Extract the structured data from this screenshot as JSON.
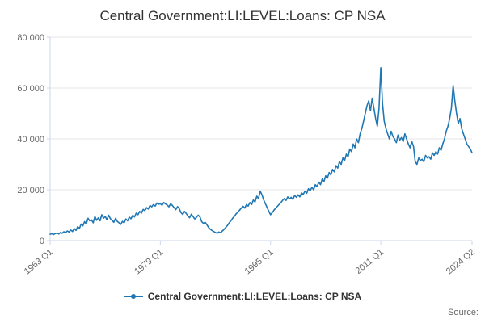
{
  "title": "Central Government:LI:LEVEL:Loans: CP NSA",
  "source_label": "Source:",
  "legend": {
    "label": "Central Government:LI:LEVEL:Loans: CP NSA",
    "color": "#1f77b4"
  },
  "colors": {
    "grid": "#e6e6e6",
    "axis": "#ccd6eb",
    "tick_text": "#666666",
    "title_text": "#333333"
  },
  "chart_data": {
    "type": "line",
    "title": "Central Government:LI:LEVEL:Loans: CP NSA",
    "xlabel": "",
    "ylabel": "",
    "ylim": [
      0,
      80000
    ],
    "grid": true,
    "legend_position": "bottom",
    "x_axis": {
      "start": "1963 Q1",
      "end": "2024 Q2",
      "frequency": "quarterly"
    },
    "x_ticks": [
      {
        "label": "1963 Q1",
        "index": 0
      },
      {
        "label": "1979 Q1",
        "index": 64
      },
      {
        "label": "1995 Q1",
        "index": 128
      },
      {
        "label": "2011 Q1",
        "index": 192
      },
      {
        "label": "2024 Q2",
        "index": 245
      }
    ],
    "y_ticks": [
      {
        "value": 0,
        "label": "0"
      },
      {
        "value": 20000,
        "label": "20 000"
      },
      {
        "value": 40000,
        "label": "40 000"
      },
      {
        "value": 60000,
        "label": "60 000"
      },
      {
        "value": 80000,
        "label": "80 000"
      }
    ],
    "series": [
      {
        "name": "Central Government:LI:LEVEL:Loans: CP NSA",
        "color": "#1f77b4",
        "values": [
          2500,
          2700,
          2400,
          2800,
          3000,
          2600,
          3200,
          2900,
          3500,
          3100,
          3800,
          3400,
          4200,
          3600,
          4800,
          4000,
          5500,
          4800,
          6500,
          5800,
          7500,
          6500,
          8800,
          7800,
          8200,
          7000,
          9500,
          8000,
          9000,
          7800,
          10200,
          8800,
          9500,
          8200,
          10000,
          8600,
          8000,
          7200,
          8800,
          7600,
          7000,
          6400,
          7600,
          7000,
          8500,
          7800,
          9200,
          8600,
          10000,
          9300,
          10800,
          10200,
          11500,
          10800,
          12300,
          11800,
          13000,
          12400,
          13800,
          13300,
          14200,
          13600,
          14800,
          14300,
          14500,
          13900,
          15000,
          14400,
          14000,
          13300,
          14500,
          13800,
          13000,
          12200,
          13400,
          12500,
          11000,
          10300,
          11500,
          10700,
          9800,
          9000,
          10400,
          9500,
          8500,
          9200,
          10000,
          9300,
          7500,
          6800,
          7200,
          6300,
          5200,
          4500,
          4000,
          3600,
          3200,
          2900,
          3400,
          3100,
          3800,
          4400,
          5200,
          6000,
          7000,
          7800,
          8800,
          9600,
          10500,
          11200,
          12000,
          12800,
          13500,
          12800,
          14200,
          13600,
          15000,
          14200,
          16000,
          15200,
          17500,
          16500,
          19500,
          18000,
          16000,
          14500,
          13000,
          11500,
          10200,
          11000,
          12000,
          12800,
          13500,
          14300,
          15000,
          15800,
          16500,
          15800,
          17200,
          16400,
          17000,
          16200,
          17800,
          17000,
          18000,
          17200,
          18800,
          18200,
          19500,
          18600,
          20400,
          19600,
          21000,
          20000,
          22000,
          21200,
          23000,
          22000,
          24200,
          23200,
          25500,
          24500,
          26800,
          25800,
          28000,
          27000,
          29500,
          28500,
          31000,
          30000,
          32500,
          31500,
          34000,
          33000,
          36000,
          35000,
          38000,
          36500,
          40000,
          38500,
          42000,
          44000,
          47000,
          50000,
          53000,
          55000,
          51000,
          56000,
          52000,
          48000,
          45000,
          52000,
          68000,
          54000,
          47000,
          44000,
          42000,
          40000,
          43000,
          41000,
          40000,
          38500,
          41500,
          39500,
          40500,
          39000,
          42000,
          40000,
          38000,
          36500,
          39000,
          37000,
          31000,
          30000,
          32500,
          31500,
          32000,
          31000,
          33500,
          32500,
          33000,
          32000,
          34500,
          33500,
          35000,
          34000,
          36500,
          35500,
          38000,
          40000,
          43000,
          45000,
          48000,
          52000,
          61000,
          55000,
          50000,
          46000,
          48000,
          44000,
          42000,
          40000,
          38000,
          37000,
          36000,
          34500
        ]
      }
    ]
  }
}
